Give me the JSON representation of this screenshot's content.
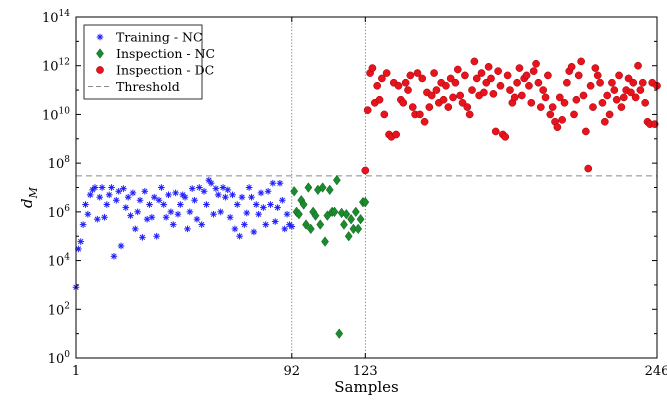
{
  "chart_data": {
    "type": "scatter",
    "title": "",
    "xlabel": "Samples",
    "ylabel": "d",
    "ylabel_subscript": "M",
    "xlim": [
      1,
      246
    ],
    "ylim": [
      1,
      100000000000000
    ],
    "y_scale": "log",
    "x_ticks": [
      {
        "value": 1,
        "label": "1"
      },
      {
        "value": 92,
        "label": "92"
      },
      {
        "value": 123,
        "label": "123"
      },
      {
        "value": 246,
        "label": "246"
      }
    ],
    "y_ticks": [
      {
        "exp": 0,
        "base": "10",
        "exp_label": "0"
      },
      {
        "exp": 2,
        "base": "10",
        "exp_label": "2"
      },
      {
        "exp": 4,
        "base": "10",
        "exp_label": "4"
      },
      {
        "exp": 6,
        "base": "10",
        "exp_label": "6"
      },
      {
        "exp": 8,
        "base": "10",
        "exp_label": "8"
      },
      {
        "exp": 10,
        "base": "10",
        "exp_label": "10"
      },
      {
        "exp": 12,
        "base": "10",
        "exp_label": "12"
      },
      {
        "exp": 14,
        "base": "10",
        "exp_label": "14"
      }
    ],
    "vlines": [
      92,
      123
    ],
    "threshold": 30000000,
    "legend_position": "top-left",
    "legend": [
      {
        "label": "Training - NC",
        "marker": "star",
        "color": "#1f1fff"
      },
      {
        "label": "Inspection - NC",
        "marker": "diamond",
        "color": "#1a8c2e"
      },
      {
        "label": "Inspection - DC",
        "marker": "circle",
        "color": "#e8141c"
      },
      {
        "label": "Threshold",
        "marker": "dashed-line",
        "color": "#888888"
      }
    ],
    "series": [
      {
        "name": "Training - NC",
        "marker": "star",
        "color": "#1f1fff",
        "x": [
          1,
          2,
          3,
          4,
          5,
          6,
          7,
          8,
          9,
          10,
          11,
          12,
          13,
          14,
          15,
          16,
          17,
          18,
          19,
          20,
          21,
          22,
          23,
          24,
          25,
          26,
          27,
          28,
          29,
          30,
          31,
          32,
          33,
          34,
          35,
          36,
          37,
          38,
          39,
          40,
          41,
          42,
          43,
          44,
          45,
          46,
          47,
          48,
          49,
          50,
          51,
          52,
          53,
          54,
          55,
          56,
          57,
          58,
          59,
          60,
          61,
          62,
          63,
          64,
          65,
          66,
          67,
          68,
          69,
          70,
          71,
          72,
          73,
          74,
          75,
          76,
          77,
          78,
          79,
          80,
          81,
          82,
          83,
          84,
          85,
          86,
          87,
          88,
          89,
          90,
          91,
          92
        ],
        "y": [
          800,
          30000,
          60000,
          300000,
          2000000,
          800000,
          5000000,
          8000000,
          10000000,
          500000,
          4000000,
          10000000,
          600000,
          2000000,
          5000000,
          10000000,
          15000,
          3000000,
          7000000,
          40000,
          9000000,
          1500000,
          4000000,
          700000,
          6000000,
          200000,
          1000000,
          3000000,
          90000,
          7000000,
          500000,
          2000000,
          600000,
          4000000,
          100000,
          3000000,
          10000000,
          2000000,
          600000,
          5000000,
          1000000,
          300000,
          6000000,
          800000,
          2000000,
          5000000,
          4000000,
          200000,
          1000000,
          9000000,
          3000000,
          500000,
          10000000,
          300000,
          7000000,
          2000000,
          20000000,
          15000000,
          800000,
          9000000,
          5000000,
          1000000,
          10000000,
          4000000,
          8000000,
          600000,
          5000000,
          200000,
          2000000,
          100000,
          4000000,
          300000,
          900000,
          10000000,
          4000000,
          150000,
          2000000,
          800000,
          6000000,
          1500000,
          300000,
          7000000,
          2000000,
          15000000,
          400000,
          1500000,
          15000000,
          3000000,
          200000,
          800000,
          300000,
          250000
        ]
      },
      {
        "name": "Inspection - NC",
        "marker": "diamond",
        "color": "#1a8c2e",
        "x": [
          93,
          94,
          95,
          96,
          97,
          98,
          99,
          100,
          101,
          102,
          103,
          104,
          105,
          106,
          107,
          108,
          109,
          110,
          111,
          112,
          113,
          114,
          115,
          116,
          117,
          118,
          119,
          120,
          121,
          122,
          123
        ],
        "y": [
          7000000,
          1000000,
          800000,
          3000000,
          2000000,
          300000,
          10000000,
          200000,
          1000000,
          700000,
          8000000,
          300000,
          10000000,
          60000,
          700000,
          8000000,
          1000000,
          1000000,
          20000000,
          10,
          900000,
          300000,
          800000,
          100000,
          500000,
          200000,
          1000000,
          200000,
          500000,
          2500000,
          2500000
        ]
      },
      {
        "name": "Inspection - DC",
        "marker": "circle",
        "color": "#e8141c",
        "x": [
          123,
          124,
          125,
          126,
          127,
          128,
          129,
          130,
          131,
          132,
          133,
          134,
          135,
          136,
          137,
          138,
          139,
          140,
          141,
          142,
          143,
          144,
          145,
          146,
          147,
          148,
          149,
          150,
          151,
          152,
          153,
          154,
          155,
          156,
          157,
          158,
          159,
          160,
          161,
          162,
          163,
          164,
          165,
          166,
          167,
          168,
          169,
          170,
          171,
          172,
          173,
          174,
          175,
          176,
          177,
          178,
          179,
          180,
          181,
          182,
          183,
          184,
          185,
          186,
          187,
          188,
          189,
          190,
          191,
          192,
          193,
          194,
          195,
          196,
          197,
          198,
          199,
          200,
          201,
          202,
          203,
          204,
          205,
          206,
          207,
          208,
          209,
          210,
          211,
          212,
          213,
          214,
          215,
          216,
          217,
          218,
          219,
          220,
          221,
          222,
          223,
          224,
          225,
          226,
          227,
          228,
          229,
          230,
          231,
          232,
          233,
          234,
          235,
          236,
          237,
          238,
          239,
          240,
          241,
          242,
          243,
          244,
          245,
          246
        ],
        "y": [
          50000000,
          15000000000,
          500000000000,
          800000000000,
          30000000000,
          150000000000,
          40000000000,
          300000000000,
          10000000000,
          500000000000,
          1500000000,
          1200000000,
          200000000000,
          1500000000,
          150000000000,
          40000000000,
          30000000000,
          200000000000,
          100000000000,
          400000000000,
          20000000000,
          10000000000,
          500000000000,
          10000000000,
          300000000000,
          5000000000,
          80000000000,
          20000000000,
          60000000000,
          500000000000,
          100000000000,
          30000000000,
          200000000000,
          40000000000,
          150000000000,
          20000000000,
          300000000000,
          50000000000,
          200000000000,
          700000000000,
          60000000000,
          30000000000,
          400000000000,
          20000000000,
          10000000000,
          100000000000,
          1500000000000,
          300000000000,
          60000000000,
          500000000000,
          80000000000,
          200000000000,
          900000000000,
          300000000000,
          70000000000,
          2000000000,
          600000000000,
          150000000000,
          1500000000,
          1200000000,
          400000000000,
          100000000000,
          30000000000,
          50000000000,
          200000000000,
          800000000000,
          60000000000,
          300000000000,
          400000000000,
          150000000000,
          30000000000,
          600000000000,
          1200000000000,
          200000000000,
          20000000000,
          100000000000,
          50000000000,
          400000000000,
          10000000000,
          20000000000,
          5000000000,
          3000000000,
          50000000000,
          6000000000,
          30000000000,
          200000000000,
          600000000000,
          900000000000,
          10000000000,
          40000000000,
          400000000000,
          1500000000000,
          60000000000,
          2000000000,
          60000000,
          150000000000,
          20000000000,
          800000000000,
          400000000000,
          200000000000,
          30000000000,
          5000000000,
          60000000000,
          10000000000,
          200000000000,
          100000000000,
          40000000000,
          400000000000,
          20000000000,
          50000000000,
          100000000000,
          300000000000,
          80000000000,
          200000000000,
          50000000000,
          1000000000000,
          100000000000,
          200000000000,
          30000000000,
          5000000000,
          4000000000,
          200000000000,
          4000000000,
          150000000000
        ]
      }
    ]
  }
}
